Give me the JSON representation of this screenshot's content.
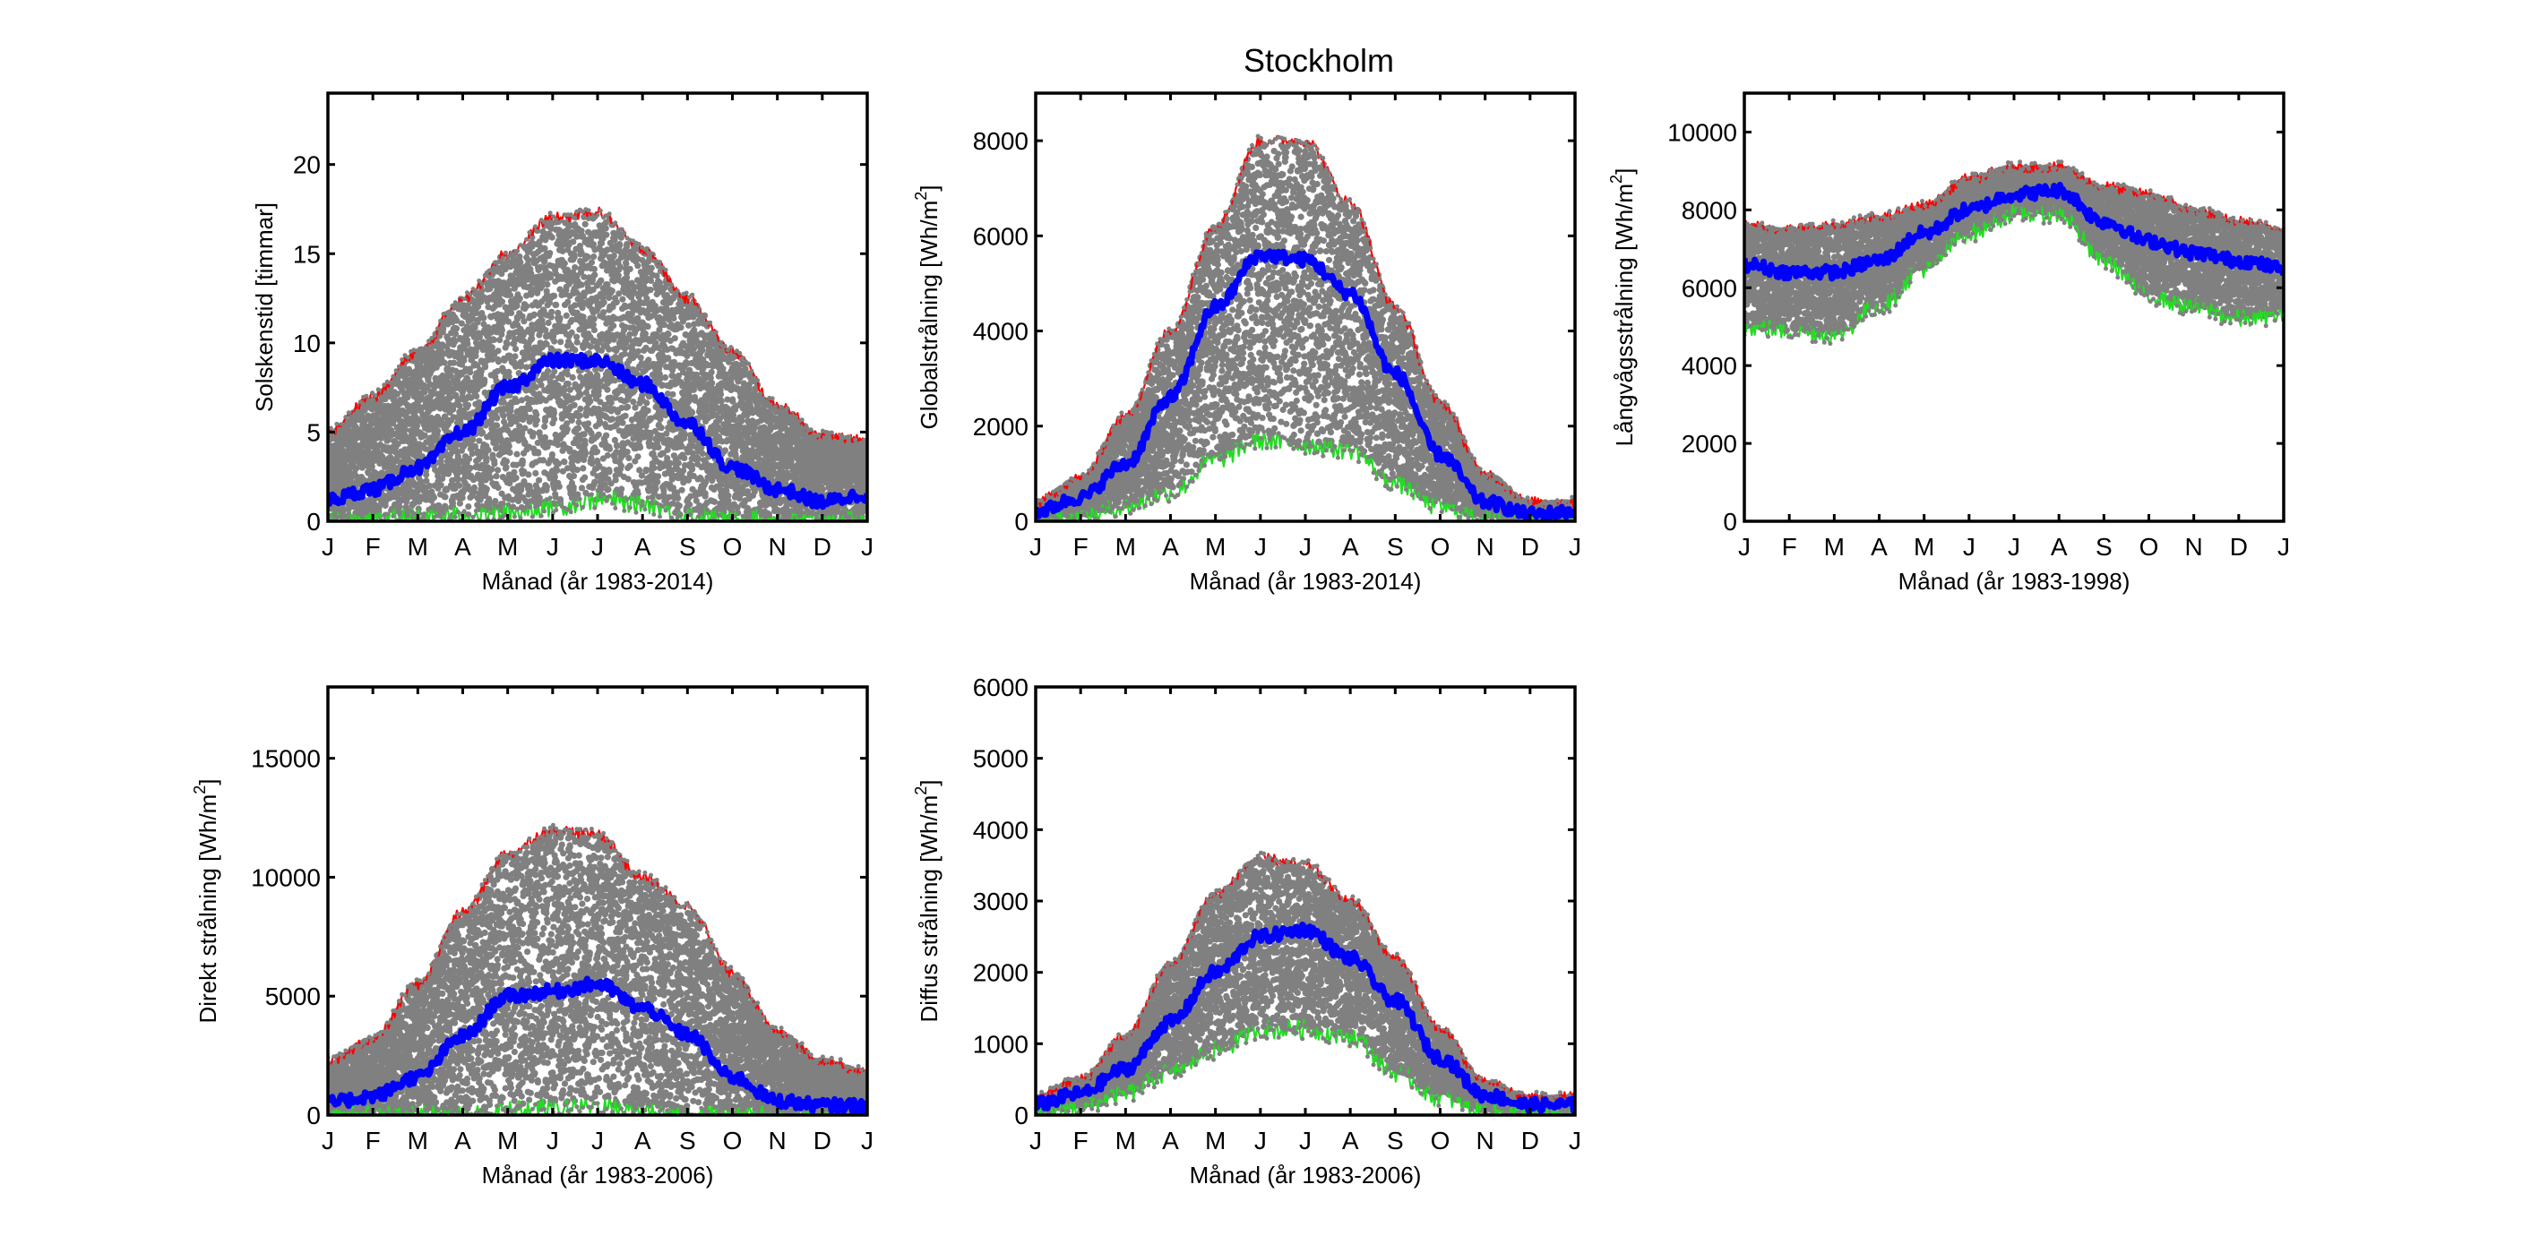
{
  "figure": {
    "suptitle": "Stockholm"
  },
  "chart_data": [
    {
      "type": "scatter",
      "panel": "top-left",
      "title": "",
      "ylabel": "Solskenstid [timmar]",
      "ylabel_unit_sup": "",
      "xlabel": "Månad (år 1983-2014)",
      "x_tick_labels": [
        "J",
        "F",
        "M",
        "A",
        "M",
        "J",
        "J",
        "A",
        "S",
        "O",
        "N",
        "D",
        "J"
      ],
      "ylim": [
        0,
        24
      ],
      "y_ticks": [
        0,
        5,
        10,
        15,
        20
      ],
      "y_tick_labels": [
        "0",
        "5",
        "10",
        "15",
        "20"
      ],
      "grid": false,
      "series": [
        {
          "name": "max",
          "color": "#ff0000",
          "values": [
            5,
            7,
            9.5,
            12.5,
            15,
            17,
            17.3,
            15.3,
            12.5,
            9.5,
            6.5,
            4.8,
            4.5
          ]
        },
        {
          "name": "mean",
          "color": "#0000ff",
          "values": [
            1.2,
            1.8,
            3,
            5,
            7.5,
            9,
            9,
            7.7,
            5.5,
            3,
            1.8,
            1.1,
            1.5
          ]
        },
        {
          "name": "min",
          "color": "#22dd22",
          "values": [
            0.1,
            0.1,
            0.2,
            0.3,
            0.5,
            0.8,
            1.2,
            1,
            0.3,
            0.1,
            0.1,
            0.1,
            0.2
          ]
        },
        {
          "name": "daily values",
          "color": "#808080",
          "values": []
        }
      ]
    },
    {
      "type": "scatter",
      "panel": "top-middle",
      "title": "",
      "ylabel": "Globalstrålning [Wh/m",
      "ylabel_unit_sup": "2",
      "ylabel_close": "]",
      "xlabel": "Månad (år 1983-2014)",
      "x_tick_labels": [
        "J",
        "F",
        "M",
        "A",
        "M",
        "J",
        "J",
        "A",
        "S",
        "O",
        "N",
        "D",
        "J"
      ],
      "ylim": [
        0,
        9000
      ],
      "y_ticks": [
        0,
        2000,
        4000,
        6000,
        8000
      ],
      "y_tick_labels": [
        "0",
        "2000",
        "4000",
        "6000",
        "8000"
      ],
      "grid": false,
      "series": [
        {
          "name": "max",
          "color": "#ff0000",
          "values": [
            400,
            900,
            2200,
            4000,
            6200,
            8000,
            8000,
            6700,
            4500,
            2500,
            1000,
            400,
            400
          ]
        },
        {
          "name": "mean",
          "color": "#0000ff",
          "values": [
            200,
            500,
            1200,
            2600,
            4500,
            5600,
            5500,
            4800,
            3100,
            1400,
            400,
            150,
            200
          ]
        },
        {
          "name": "min",
          "color": "#22dd22",
          "values": [
            20,
            100,
            300,
            600,
            1300,
            1700,
            1600,
            1500,
            800,
            300,
            60,
            20,
            20
          ]
        },
        {
          "name": "daily values",
          "color": "#808080",
          "values": []
        }
      ]
    },
    {
      "type": "scatter",
      "panel": "top-right",
      "title": "",
      "ylabel": "Långvågsstrålning [Wh/m",
      "ylabel_unit_sup": "2",
      "ylabel_close": "]",
      "xlabel": "Månad (år 1983-1998)",
      "x_tick_labels": [
        "J",
        "F",
        "M",
        "A",
        "M",
        "J",
        "J",
        "A",
        "S",
        "O",
        "N",
        "D",
        "J"
      ],
      "ylim": [
        0,
        11000
      ],
      "y_ticks": [
        0,
        2000,
        4000,
        6000,
        8000,
        10000
      ],
      "y_tick_labels": [
        "0",
        "2000",
        "4000",
        "6000",
        "8000",
        "10000"
      ],
      "grid": false,
      "series": [
        {
          "name": "max",
          "color": "#ff0000",
          "values": [
            7600,
            7500,
            7600,
            7800,
            8100,
            8800,
            9100,
            9100,
            8600,
            8400,
            8000,
            7700,
            7500
          ]
        },
        {
          "name": "mean",
          "color": "#0000ff",
          "values": [
            6600,
            6400,
            6400,
            6700,
            7400,
            8000,
            8400,
            8500,
            7700,
            7200,
            6900,
            6700,
            6500
          ]
        },
        {
          "name": "min",
          "color": "#22dd22",
          "values": [
            5000,
            4900,
            4800,
            5500,
            6500,
            7400,
            7900,
            7900,
            6700,
            5800,
            5500,
            5200,
            5300
          ]
        },
        {
          "name": "daily values",
          "color": "#808080",
          "values": []
        }
      ]
    },
    {
      "type": "scatter",
      "panel": "bottom-left",
      "title": "",
      "ylabel": "Direkt strålning [Wh/m",
      "ylabel_unit_sup": "2",
      "ylabel_close": "]",
      "xlabel": "Månad (år 1983-2006)",
      "x_tick_labels": [
        "J",
        "F",
        "M",
        "A",
        "M",
        "J",
        "J",
        "A",
        "S",
        "O",
        "N",
        "D",
        "J"
      ],
      "ylim": [
        0,
        18000
      ],
      "y_ticks": [
        0,
        5000,
        10000,
        15000
      ],
      "y_tick_labels": [
        "0",
        "5000",
        "10000",
        "15000"
      ],
      "grid": false,
      "series": [
        {
          "name": "max",
          "color": "#ff0000",
          "values": [
            2200,
            3200,
            5500,
            8500,
            11000,
            12000,
            11800,
            10000,
            8800,
            6000,
            3500,
            2300,
            1800
          ]
        },
        {
          "name": "mean",
          "color": "#0000ff",
          "values": [
            500,
            800,
            1600,
            3300,
            5000,
            5200,
            5500,
            4500,
            3400,
            1600,
            600,
            400,
            400
          ]
        },
        {
          "name": "min",
          "color": "#22dd22",
          "values": [
            0,
            0,
            0,
            0,
            200,
            300,
            400,
            200,
            0,
            0,
            0,
            0,
            0
          ]
        },
        {
          "name": "daily values",
          "color": "#808080",
          "values": []
        }
      ]
    },
    {
      "type": "scatter",
      "panel": "bottom-middle",
      "title": "",
      "ylabel": "Diffus strålning [Wh/m",
      "ylabel_unit_sup": "2",
      "ylabel_close": "]",
      "xlabel": "Månad (år 1983-2006)",
      "x_tick_labels": [
        "J",
        "F",
        "M",
        "A",
        "M",
        "J",
        "J",
        "A",
        "S",
        "O",
        "N",
        "D",
        "J"
      ],
      "ylim": [
        0,
        6000
      ],
      "y_ticks": [
        0,
        1000,
        2000,
        3000,
        4000,
        5000,
        6000
      ],
      "y_tick_labels": [
        "0",
        "1000",
        "2000",
        "3000",
        "4000",
        "5000",
        "6000"
      ],
      "grid": false,
      "series": [
        {
          "name": "max",
          "color": "#ff0000",
          "values": [
            250,
            500,
            1100,
            2100,
            3100,
            3600,
            3500,
            3000,
            2200,
            1200,
            450,
            250,
            250
          ]
        },
        {
          "name": "mean",
          "color": "#0000ff",
          "values": [
            150,
            300,
            650,
            1300,
            2000,
            2500,
            2600,
            2200,
            1600,
            800,
            280,
            140,
            140
          ]
        },
        {
          "name": "min",
          "color": "#22dd22",
          "values": [
            40,
            120,
            300,
            600,
            900,
            1200,
            1200,
            1100,
            600,
            250,
            60,
            30,
            30
          ]
        },
        {
          "name": "daily values",
          "color": "#808080",
          "values": []
        }
      ]
    }
  ]
}
